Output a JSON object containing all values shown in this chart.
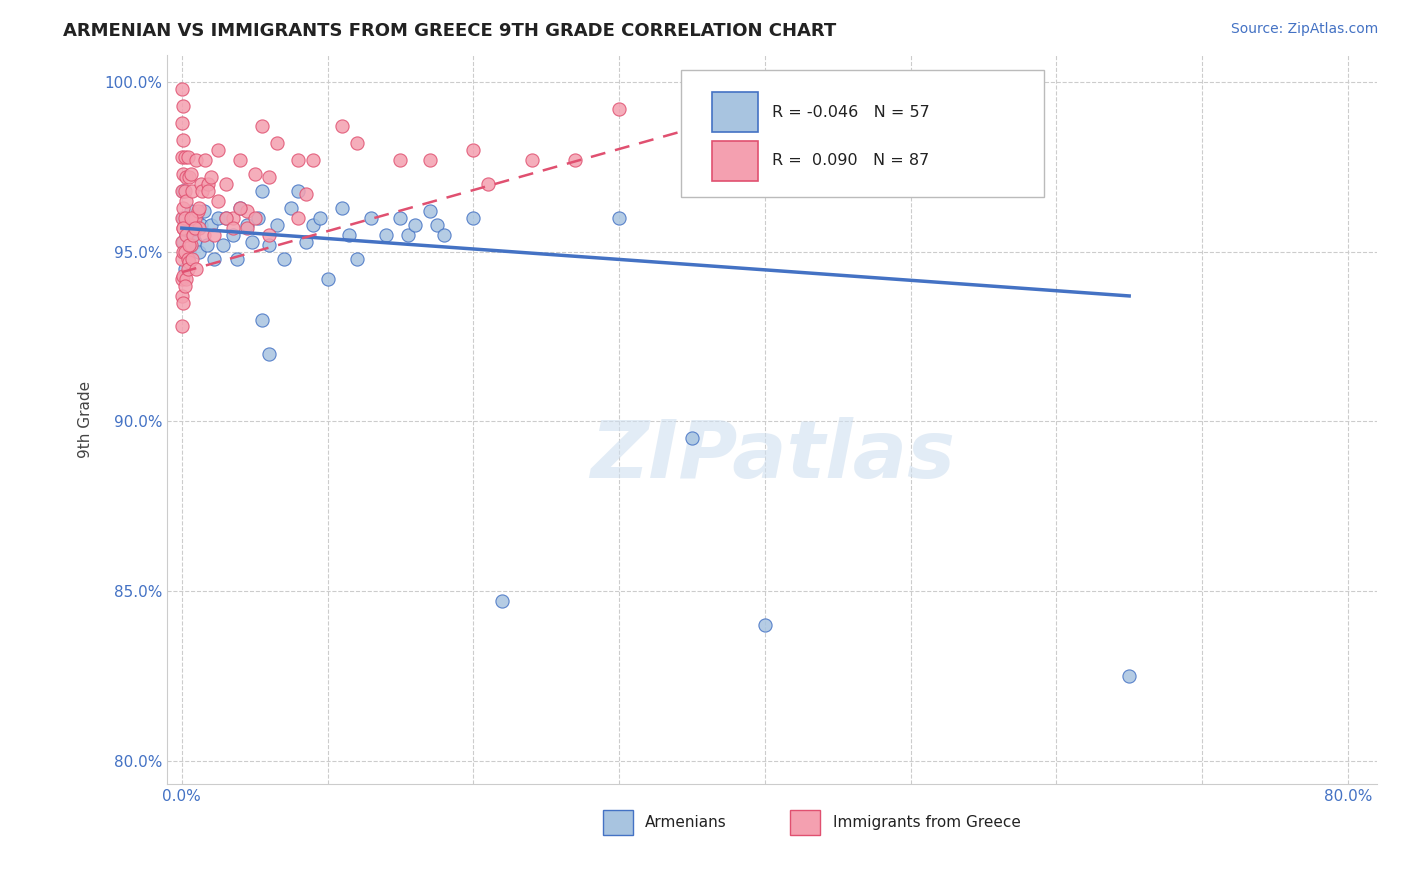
{
  "title": "ARMENIAN VS IMMIGRANTS FROM GREECE 9TH GRADE CORRELATION CHART",
  "source_text": "Source: ZipAtlas.com",
  "ylabel": "9th Grade",
  "xlim": [
    -0.01,
    0.82
  ],
  "ylim": [
    0.793,
    1.008
  ],
  "x_ticks": [
    0.0,
    0.1,
    0.2,
    0.3,
    0.4,
    0.5,
    0.6,
    0.7,
    0.8
  ],
  "x_tick_labels": [
    "0.0%",
    "",
    "",
    "",
    "",
    "",
    "",
    "",
    "80.0%"
  ],
  "y_ticks": [
    0.8,
    0.85,
    0.9,
    0.95,
    1.0
  ],
  "y_tick_labels": [
    "80.0%",
    "85.0%",
    "90.0%",
    "95.0%",
    "100.0%"
  ],
  "legend_r_armenian": "-0.046",
  "legend_n_armenian": "57",
  "legend_r_greece": "0.090",
  "legend_n_greece": "87",
  "color_armenian": "#a8c4e0",
  "color_greece": "#f4a0b0",
  "color_trendline_armenian": "#4472c4",
  "color_trendline_greece": "#e05070",
  "watermark_text": "ZIPatlas",
  "background_color": "#ffffff",
  "grid_color": "#cccccc",
  "armenian_trend_x": [
    0.0,
    0.65
  ],
  "armenian_trend_y": [
    0.957,
    0.937
  ],
  "greece_trend_x": [
    0.0,
    0.38
  ],
  "greece_trend_y": [
    0.944,
    0.99
  ],
  "scatter_armenian_x": [
    0.001,
    0.001,
    0.001,
    0.002,
    0.002,
    0.003,
    0.004,
    0.005,
    0.006,
    0.007,
    0.008,
    0.009,
    0.01,
    0.012,
    0.013,
    0.015,
    0.017,
    0.02,
    0.022,
    0.025,
    0.028,
    0.03,
    0.035,
    0.038,
    0.04,
    0.045,
    0.048,
    0.052,
    0.055,
    0.06,
    0.065,
    0.07,
    0.075,
    0.08,
    0.085,
    0.09,
    0.095,
    0.1,
    0.11,
    0.115,
    0.12,
    0.13,
    0.14,
    0.15,
    0.155,
    0.16,
    0.17,
    0.175,
    0.18,
    0.2,
    0.22,
    0.055,
    0.06,
    0.3,
    0.35,
    0.4,
    0.65
  ],
  "scatter_armenian_y": [
    0.968,
    0.96,
    0.953,
    0.958,
    0.945,
    0.955,
    0.958,
    0.95,
    0.962,
    0.955,
    0.957,
    0.953,
    0.96,
    0.95,
    0.958,
    0.962,
    0.952,
    0.958,
    0.948,
    0.96,
    0.952,
    0.96,
    0.955,
    0.948,
    0.963,
    0.958,
    0.953,
    0.96,
    0.968,
    0.952,
    0.958,
    0.948,
    0.963,
    0.968,
    0.953,
    0.958,
    0.96,
    0.942,
    0.963,
    0.955,
    0.948,
    0.96,
    0.955,
    0.96,
    0.955,
    0.958,
    0.962,
    0.958,
    0.955,
    0.96,
    0.847,
    0.93,
    0.92,
    0.96,
    0.895,
    0.84,
    0.825
  ],
  "scatter_greece_x": [
    0.0,
    0.0,
    0.0,
    0.0,
    0.0,
    0.0,
    0.0,
    0.0,
    0.0,
    0.0,
    0.001,
    0.001,
    0.001,
    0.001,
    0.001,
    0.001,
    0.001,
    0.001,
    0.002,
    0.002,
    0.002,
    0.002,
    0.003,
    0.003,
    0.003,
    0.004,
    0.004,
    0.005,
    0.005,
    0.006,
    0.006,
    0.007,
    0.008,
    0.009,
    0.01,
    0.011,
    0.012,
    0.013,
    0.014,
    0.016,
    0.018,
    0.02,
    0.025,
    0.03,
    0.035,
    0.04,
    0.045,
    0.05,
    0.055,
    0.06,
    0.065,
    0.08,
    0.085,
    0.09,
    0.11,
    0.12,
    0.15,
    0.17,
    0.2,
    0.21,
    0.24,
    0.27,
    0.3,
    0.35,
    0.38,
    0.001,
    0.002,
    0.003,
    0.004,
    0.005,
    0.006,
    0.007,
    0.008,
    0.009,
    0.01,
    0.012,
    0.015,
    0.018,
    0.022,
    0.025,
    0.03,
    0.035,
    0.04,
    0.045,
    0.05,
    0.06,
    0.08
  ],
  "scatter_greece_y": [
    0.998,
    0.988,
    0.978,
    0.968,
    0.96,
    0.953,
    0.948,
    0.942,
    0.937,
    0.928,
    0.993,
    0.983,
    0.973,
    0.963,
    0.957,
    0.95,
    0.943,
    0.935,
    0.978,
    0.968,
    0.96,
    0.95,
    0.972,
    0.965,
    0.942,
    0.978,
    0.948,
    0.972,
    0.947,
    0.973,
    0.952,
    0.968,
    0.96,
    0.96,
    0.977,
    0.962,
    0.957,
    0.97,
    0.968,
    0.977,
    0.97,
    0.972,
    0.98,
    0.97,
    0.96,
    0.977,
    0.962,
    0.973,
    0.987,
    0.972,
    0.982,
    0.977,
    0.967,
    0.977,
    0.987,
    0.982,
    0.977,
    0.977,
    0.98,
    0.97,
    0.977,
    0.977,
    0.992,
    0.972,
    0.977,
    0.957,
    0.94,
    0.955,
    0.945,
    0.952,
    0.96,
    0.948,
    0.955,
    0.957,
    0.945,
    0.963,
    0.955,
    0.968,
    0.955,
    0.965,
    0.96,
    0.957,
    0.963,
    0.957,
    0.96,
    0.955,
    0.96
  ]
}
